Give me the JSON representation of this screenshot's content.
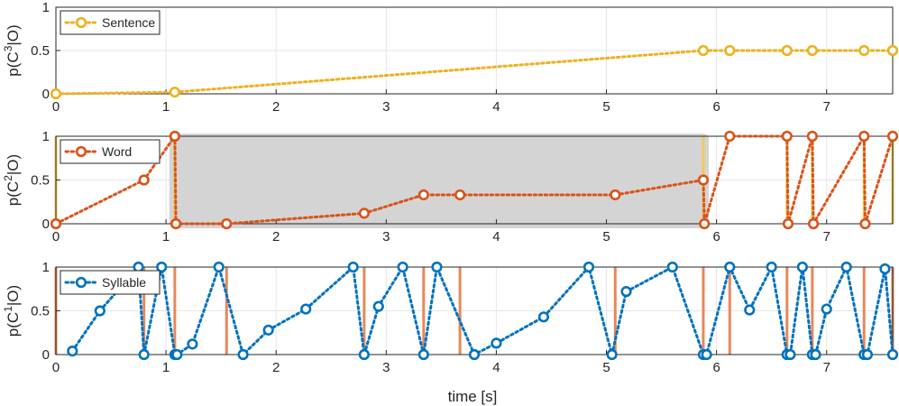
{
  "xlabel": "time [s]",
  "colors": {
    "sentence": "#EDB120",
    "word": "#D95319",
    "syllable": "#0072BD",
    "boundary_sentence": "#F3C95C",
    "boundary_word": "#E8875A",
    "shade": "#D4D4D4",
    "grid": "#E6E6E6",
    "axis": "#262626"
  },
  "chart_data": [
    {
      "type": "line",
      "ylabel_main": "p(C",
      "ylabel_sup": "3",
      "ylabel_tail": "|O)",
      "xlim": [
        0,
        7.6
      ],
      "ylim": [
        0,
        1
      ],
      "xticks": [
        "0",
        "1",
        "2",
        "3",
        "4",
        "5",
        "6",
        "7"
      ],
      "yticks": [
        "0",
        "0.5",
        "1"
      ],
      "grid": true,
      "legend": "top-left",
      "series": [
        {
          "name": "Sentence",
          "x": [
            0,
            1.08,
            5.88,
            6.12,
            6.64,
            6.87,
            7.34,
            7.6
          ],
          "y": [
            0,
            0.02,
            0.5,
            0.5,
            0.5,
            0.5,
            0.5,
            0.5
          ]
        }
      ],
      "boundaries": [],
      "shade": null
    },
    {
      "type": "line",
      "ylabel_main": "p(C",
      "ylabel_sup": "2",
      "ylabel_tail": "|O)",
      "xlim": [
        0,
        7.6
      ],
      "ylim": [
        0,
        1
      ],
      "xticks": [
        "0",
        "1",
        "2",
        "3",
        "4",
        "5",
        "6",
        "7"
      ],
      "yticks": [
        "0",
        "0.5",
        "1"
      ],
      "grid": true,
      "legend": "top-left",
      "series": [
        {
          "name": "Word",
          "x": [
            0,
            0.8,
            1.08,
            1.09,
            1.55,
            2.8,
            3.34,
            3.67,
            5.08,
            5.88,
            5.89,
            6.12,
            6.64,
            6.65,
            6.87,
            6.88,
            7.34,
            7.35,
            7.6
          ],
          "y": [
            0,
            0.5,
            1,
            0,
            0,
            0.12,
            0.33,
            0.33,
            0.33,
            0.5,
            0,
            1,
            1,
            0,
            1,
            0,
            1,
            0,
            1
          ]
        }
      ],
      "boundaries": [
        0,
        1.08,
        5.88,
        6.64,
        6.87,
        7.34,
        7.6
      ],
      "shade": [
        1.03,
        5.93
      ]
    },
    {
      "type": "line",
      "ylabel_main": "p(C",
      "ylabel_sup": "1",
      "ylabel_tail": "|O)",
      "xlim": [
        0,
        7.6
      ],
      "ylim": [
        0,
        1
      ],
      "xticks": [
        "0",
        "1",
        "2",
        "3",
        "4",
        "5",
        "6",
        "7"
      ],
      "yticks": [
        "0",
        "0.5",
        "1"
      ],
      "grid": true,
      "legend": "top-left",
      "series": [
        {
          "name": "Syllable",
          "x": [
            0.15,
            0.4,
            0.75,
            0.8,
            0.96,
            1.08,
            1.1,
            1.24,
            1.48,
            1.7,
            1.93,
            2.27,
            2.7,
            2.8,
            2.93,
            3.15,
            3.34,
            3.46,
            3.8,
            4.0,
            4.43,
            4.84,
            5.05,
            5.18,
            5.6,
            5.88,
            5.91,
            6.12,
            6.3,
            6.5,
            6.64,
            6.67,
            6.78,
            6.87,
            6.9,
            7.0,
            7.18,
            7.34,
            7.37,
            7.53,
            7.6
          ],
          "y": [
            0.04,
            0.5,
            1,
            0,
            1,
            0,
            0,
            0.12,
            1,
            0,
            0.28,
            0.52,
            1,
            0,
            0.55,
            1,
            0,
            1,
            0,
            0.13,
            0.43,
            1,
            0,
            0.72,
            1,
            0,
            0,
            1,
            0.51,
            1,
            0,
            0,
            1,
            0,
            0,
            0.52,
            1,
            0,
            0,
            0.98,
            0
          ]
        }
      ],
      "boundaries": [
        0,
        0.8,
        1.08,
        1.55,
        2.8,
        3.34,
        3.67,
        5.08,
        5.88,
        6.12,
        6.64,
        6.87,
        7.34,
        7.6
      ],
      "shade": null
    }
  ]
}
